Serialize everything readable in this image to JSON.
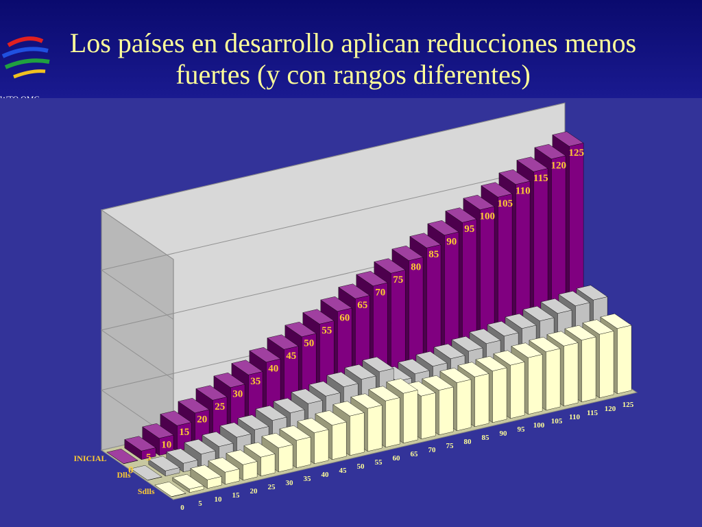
{
  "chart_data": {
    "type": "bar3d",
    "title": "Los países en desarrollo aplican reducciones menos fuertes (y con rangos diferentes)",
    "logo_text": "WTO OMC",
    "categories": [
      0,
      5,
      10,
      15,
      20,
      25,
      30,
      35,
      40,
      45,
      50,
      55,
      60,
      65,
      70,
      75,
      80,
      85,
      90,
      95,
      100,
      105,
      110,
      115,
      120,
      125
    ],
    "series": [
      {
        "name": "INICIAL",
        "color": "#800080",
        "values": [
          0,
          5,
          10,
          15,
          20,
          25,
          30,
          35,
          40,
          45,
          50,
          55,
          60,
          65,
          70,
          75,
          80,
          85,
          90,
          95,
          100,
          105,
          110,
          115,
          120,
          125
        ]
      },
      {
        "name": "Dlls",
        "color": "#c0c0c0",
        "values": [
          0,
          3,
          5,
          8,
          10,
          13,
          15,
          18,
          20,
          23,
          25,
          28,
          30,
          32,
          24,
          26,
          28,
          30,
          32,
          34,
          36,
          38,
          40,
          42,
          44,
          45
        ]
      },
      {
        "name": "Sdlls",
        "color": "#ffffcc",
        "values": [
          0,
          2,
          5,
          7,
          9,
          11,
          14,
          16,
          18,
          20,
          23,
          25,
          27,
          29,
          25,
          26,
          28,
          29,
          30,
          31,
          33,
          34,
          35,
          36,
          37,
          38
        ]
      }
    ],
    "ylim": [
      0,
      140
    ],
    "yticks": [
      0,
      35,
      70,
      105,
      140
    ],
    "grid": true
  }
}
